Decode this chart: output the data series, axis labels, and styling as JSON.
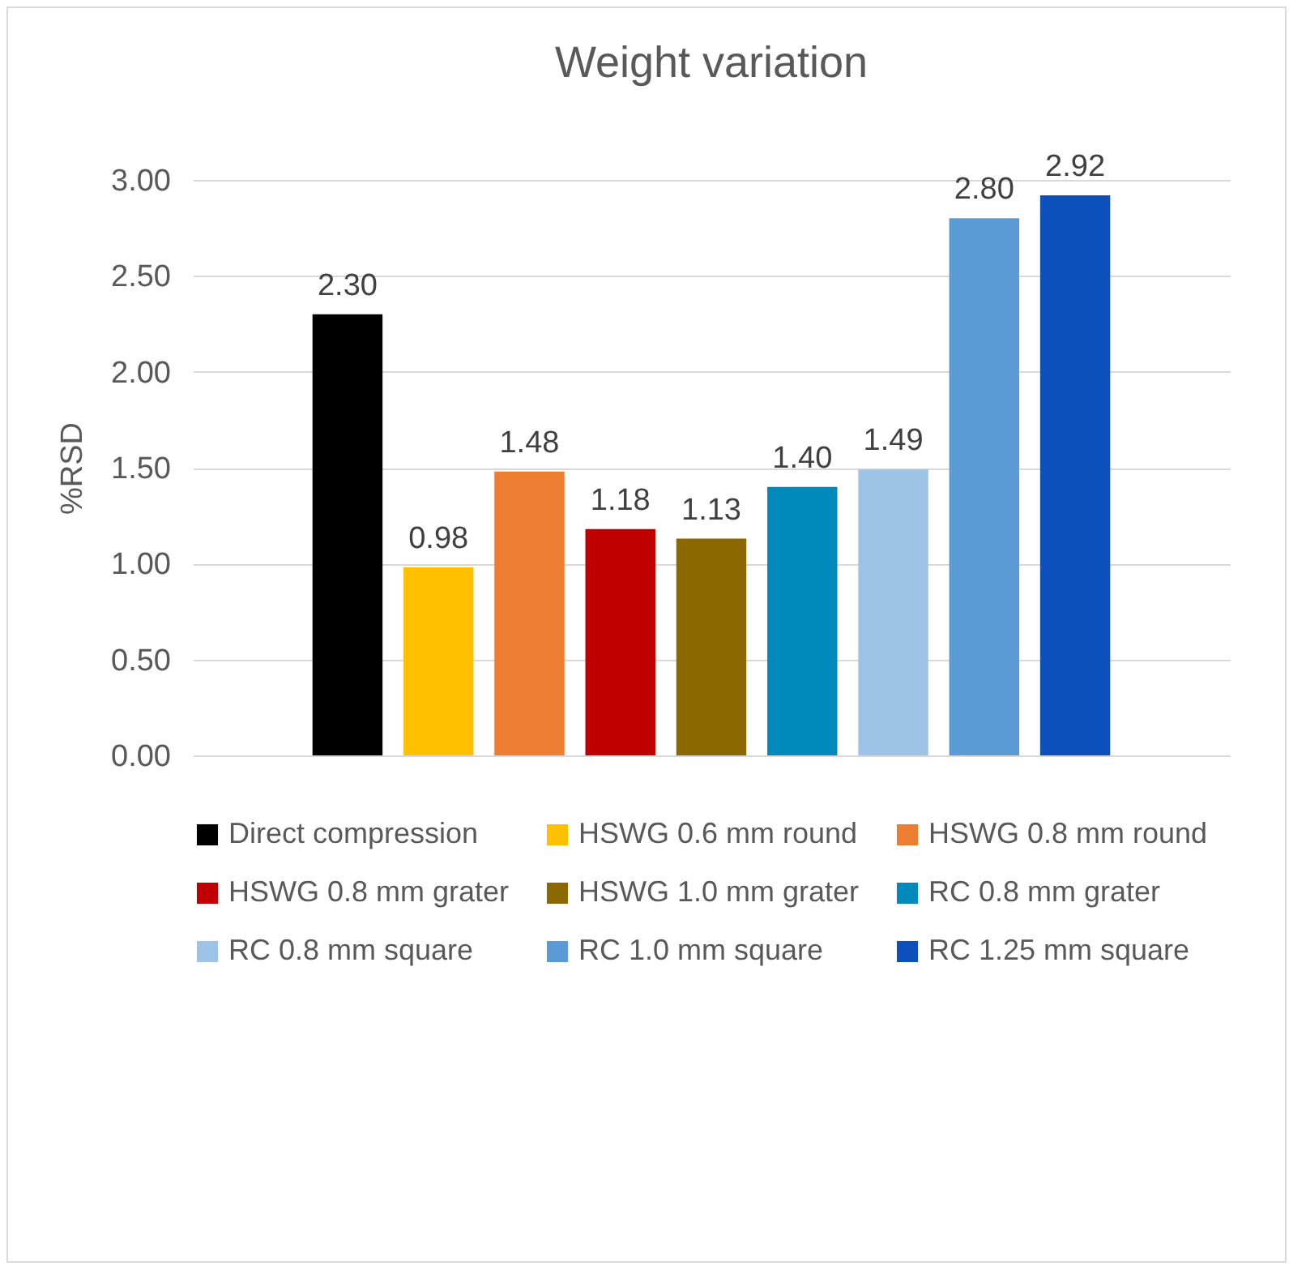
{
  "chart_data": {
    "type": "bar",
    "title": "Weight variation",
    "ylabel": "%RSD",
    "categories": [
      null
    ],
    "series": [
      {
        "name": "Direct compression",
        "color": "#000000",
        "values": [
          2.3
        ],
        "value_labels": [
          "2.30"
        ]
      },
      {
        "name": "HSWG 0.6 mm round",
        "color": "#ffc000",
        "values": [
          0.98
        ],
        "value_labels": [
          "0.98"
        ]
      },
      {
        "name": "HSWG 0.8 mm round",
        "color": "#ed7d31",
        "values": [
          1.48
        ],
        "value_labels": [
          "1.48"
        ]
      },
      {
        "name": "HSWG 0.8 mm grater",
        "color": "#c00000",
        "values": [
          1.18
        ],
        "value_labels": [
          "1.18"
        ]
      },
      {
        "name": "HSWG 1.0 mm grater",
        "color": "#8c6800",
        "values": [
          1.13
        ],
        "value_labels": [
          "1.13"
        ]
      },
      {
        "name": "RC 0.8 mm grater",
        "color": "#0089bb",
        "values": [
          1.4
        ],
        "value_labels": [
          "1.40"
        ]
      },
      {
        "name": "RC 0.8 mm square",
        "color": "#9dc3e6",
        "values": [
          1.49
        ],
        "value_labels": [
          "1.49"
        ]
      },
      {
        "name": "RC 1.0 mm square",
        "color": "#5b9bd5",
        "values": [
          2.8
        ],
        "value_labels": [
          "2.80"
        ]
      },
      {
        "name": "RC 1.25 mm square",
        "color": "#0b50bb",
        "values": [
          2.92
        ],
        "value_labels": [
          "2.92"
        ]
      }
    ],
    "ylim": [
      0,
      3.0
    ],
    "yticks": [
      {
        "value": 0,
        "label": "0.00"
      },
      {
        "value": 0.5,
        "label": "0.50"
      },
      {
        "value": 1,
        "label": "1.00"
      },
      {
        "value": 1.5,
        "label": "1.50"
      },
      {
        "value": 2,
        "label": "2.00"
      },
      {
        "value": 2.5,
        "label": "2.50"
      },
      {
        "value": 3,
        "label": "3.00"
      }
    ],
    "grid": "y",
    "legend": "bottom",
    "tick_labels": "y"
  }
}
